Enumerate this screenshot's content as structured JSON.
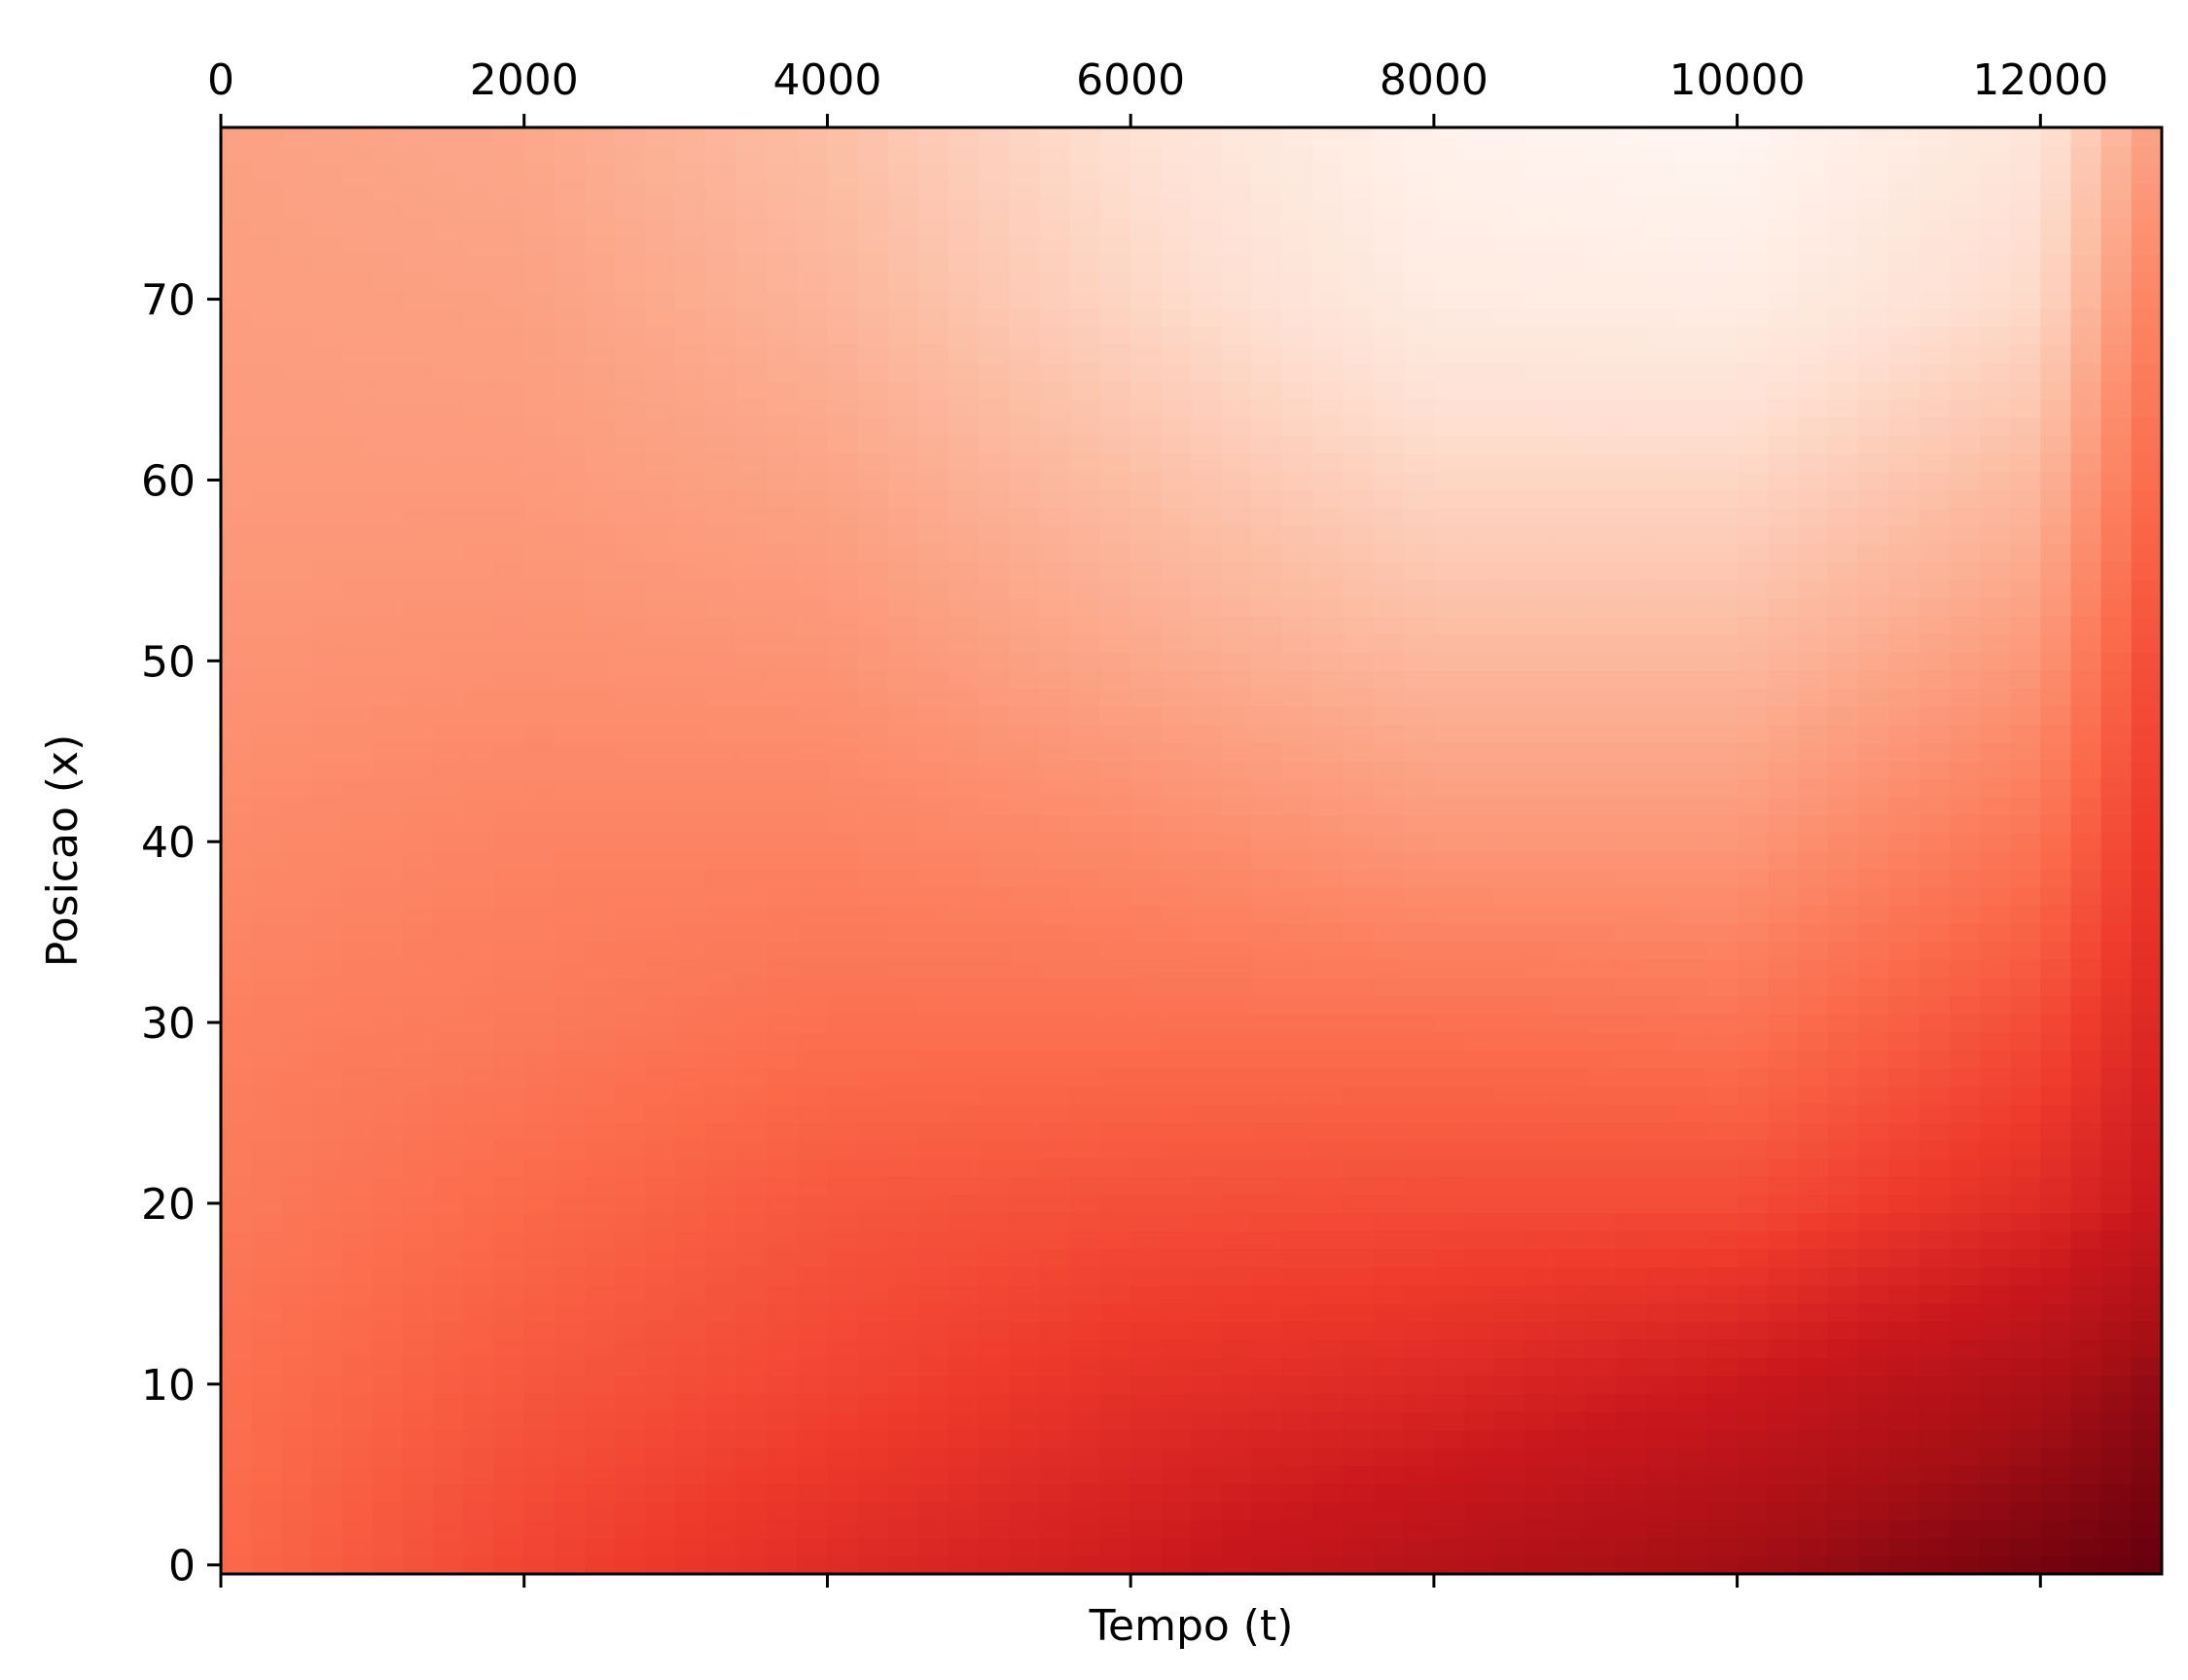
{
  "chart_data": {
    "type": "heatmap",
    "title": "",
    "xlabel": "Tempo (t)",
    "ylabel": "Posicao (x)",
    "xlim": [
      0,
      12800
    ],
    "ylim": [
      -0.5,
      79.5
    ],
    "x_ticks": [
      0,
      2000,
      4000,
      6000,
      8000,
      10000,
      12000
    ],
    "x_tick_labels": [
      "0",
      "2000",
      "4000",
      "6000",
      "8000",
      "10000",
      "12000"
    ],
    "x_tick_labels_position": "top",
    "y_ticks": [
      0,
      10,
      20,
      30,
      40,
      50,
      60,
      70
    ],
    "y_tick_labels": [
      "0",
      "10",
      "20",
      "30",
      "40",
      "50",
      "60",
      "70"
    ],
    "colormap": "Reds",
    "colorbar": false,
    "grid": false,
    "value_range": [
      0,
      1
    ],
    "grid_t": [
      0,
      2000,
      4000,
      6000,
      8000,
      10000,
      12000,
      12800
    ],
    "grid_x": [
      0,
      10,
      20,
      30,
      40,
      50,
      60,
      70,
      79
    ],
    "z": [
      [
        0.5,
        0.6,
        0.68,
        0.74,
        0.82,
        0.88,
        0.97,
        1.0
      ],
      [
        0.48,
        0.55,
        0.6,
        0.66,
        0.69,
        0.75,
        0.85,
        0.92
      ],
      [
        0.45,
        0.5,
        0.55,
        0.57,
        0.58,
        0.58,
        0.68,
        0.76
      ],
      [
        0.43,
        0.45,
        0.48,
        0.48,
        0.48,
        0.47,
        0.58,
        0.7
      ],
      [
        0.4,
        0.42,
        0.42,
        0.4,
        0.36,
        0.36,
        0.47,
        0.65
      ],
      [
        0.37,
        0.38,
        0.37,
        0.31,
        0.26,
        0.26,
        0.36,
        0.6
      ],
      [
        0.35,
        0.35,
        0.32,
        0.24,
        0.16,
        0.16,
        0.26,
        0.52
      ],
      [
        0.34,
        0.33,
        0.27,
        0.16,
        0.06,
        0.05,
        0.15,
        0.45
      ],
      [
        0.33,
        0.31,
        0.24,
        0.12,
        0.02,
        0.0,
        0.1,
        0.36
      ]
    ]
  }
}
